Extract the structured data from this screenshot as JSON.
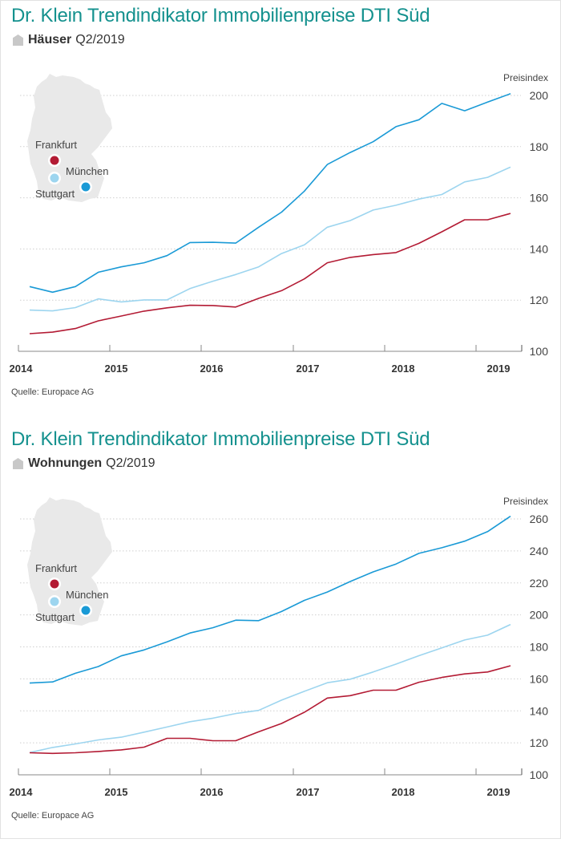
{
  "colors": {
    "title": "#14918e",
    "muenchen": "#1a9ad6",
    "stuttgart": "#9dd5ef",
    "frankfurt": "#b31b34",
    "map": "#e9e9e9"
  },
  "chart_data": [
    {
      "type": "line",
      "title": "Dr. Klein Trendindikator Immobilienpreise DTI Süd",
      "subtitle_bold": "Häuser",
      "subtitle": "Q2/2019",
      "icon": "house-icon",
      "ylabel": "Preisindex",
      "ylim": [
        100,
        200
      ],
      "yticks": [
        100,
        120,
        140,
        160,
        180,
        200
      ],
      "xticks": [
        "2014",
        "2015",
        "2016",
        "2017",
        "2018",
        "2019"
      ],
      "x": [
        "2014 Q1",
        "2014 Q2",
        "2014 Q3",
        "2014 Q4",
        "2015 Q1",
        "2015 Q2",
        "2015 Q3",
        "2015 Q4",
        "2016 Q1",
        "2016 Q2",
        "2016 Q3",
        "2016 Q4",
        "2017 Q1",
        "2017 Q2",
        "2017 Q3",
        "2017 Q4",
        "2018 Q1",
        "2018 Q2",
        "2018 Q3",
        "2018 Q4",
        "2019 Q1",
        "2019 Q2"
      ],
      "grid": true,
      "legend": "map-inset-top-left",
      "series": [
        {
          "name": "München",
          "color": "#1a9ad6",
          "values": [
            125.3,
            123.1,
            125.3,
            130.9,
            133.0,
            134.6,
            137.4,
            142.5,
            142.6,
            142.3,
            148.5,
            154.4,
            162.6,
            173.0,
            177.7,
            181.9,
            187.8,
            190.5,
            196.9,
            194.0,
            197.4,
            200.7
          ]
        },
        {
          "name": "Stuttgart",
          "color": "#9dd5ef",
          "values": [
            116.1,
            115.8,
            117.1,
            120.5,
            119.3,
            120.1,
            120.1,
            124.5,
            127.4,
            130.0,
            133.0,
            138.2,
            141.6,
            148.5,
            151.1,
            155.2,
            157.1,
            159.5,
            161.3,
            166.2,
            168.0,
            172.0
          ]
        },
        {
          "name": "Frankfurt",
          "color": "#b31b34",
          "values": [
            106.9,
            107.5,
            108.9,
            111.9,
            113.8,
            115.7,
            117.0,
            118.0,
            117.9,
            117.3,
            120.7,
            123.7,
            128.3,
            134.6,
            136.7,
            137.8,
            138.6,
            142.2,
            146.7,
            151.4,
            151.4,
            153.9
          ]
        }
      ],
      "source": "Quelle: Europace AG"
    },
    {
      "type": "line",
      "title": "Dr. Klein Trendindikator Immobilienpreise DTI Süd",
      "subtitle_bold": "Wohnungen",
      "subtitle": "Q2/2019",
      "icon": "house-icon",
      "ylabel": "Preisindex",
      "ylim": [
        100,
        260
      ],
      "yticks": [
        100,
        120,
        140,
        160,
        180,
        200,
        220,
        240,
        260
      ],
      "xticks": [
        "2014",
        "2015",
        "2016",
        "2017",
        "2018",
        "2019"
      ],
      "x": [
        "2014 Q1",
        "2014 Q2",
        "2014 Q3",
        "2014 Q4",
        "2015 Q1",
        "2015 Q2",
        "2015 Q3",
        "2015 Q4",
        "2016 Q1",
        "2016 Q2",
        "2016 Q3",
        "2016 Q4",
        "2017 Q1",
        "2017 Q2",
        "2017 Q3",
        "2017 Q4",
        "2018 Q1",
        "2018 Q2",
        "2018 Q3",
        "2018 Q4",
        "2019 Q1",
        "2019 Q2"
      ],
      "grid": true,
      "legend": "map-inset-top-left",
      "series": [
        {
          "name": "München",
          "color": "#1a9ad6",
          "values": [
            157.4,
            158.1,
            163.5,
            167.7,
            174.4,
            178.1,
            183.1,
            188.7,
            192.0,
            196.7,
            196.4,
            202.1,
            209.1,
            214.3,
            220.9,
            226.9,
            231.8,
            238.5,
            242.0,
            246.1,
            252.1,
            261.7
          ]
        },
        {
          "name": "Stuttgart",
          "color": "#9dd5ef",
          "values": [
            113.9,
            117.1,
            119.3,
            121.8,
            123.5,
            126.7,
            129.9,
            133.2,
            135.4,
            138.3,
            140.3,
            146.7,
            152.2,
            157.6,
            159.8,
            164.3,
            169.2,
            174.5,
            179.4,
            184.3,
            187.3,
            194.0
          ]
        },
        {
          "name": "Frankfurt",
          "color": "#b31b34",
          "values": [
            113.8,
            113.4,
            113.8,
            114.6,
            115.6,
            117.3,
            122.8,
            122.8,
            121.3,
            121.3,
            126.9,
            132.1,
            139.1,
            148.0,
            149.5,
            152.9,
            152.9,
            157.9,
            160.9,
            163.1,
            164.3,
            168.2
          ]
        }
      ],
      "source": "Quelle: Europace AG"
    }
  ]
}
